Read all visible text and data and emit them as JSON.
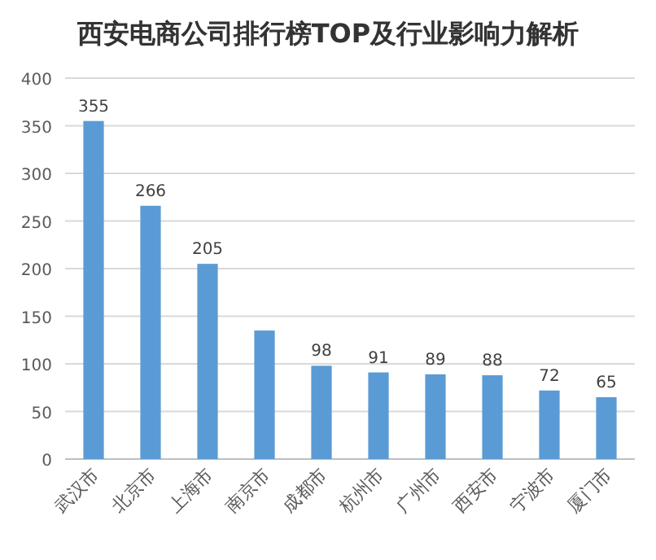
{
  "chart_data": {
    "type": "bar",
    "title": "西安电商公司排行榜TOP及行业影响力解析",
    "categories": [
      "武汉市",
      "北京市",
      "上海市",
      "南京市",
      "成都市",
      "杭州市",
      "广州市",
      "西安市",
      "宁波市",
      "厦门市"
    ],
    "values": [
      355,
      266,
      205,
      135,
      98,
      91,
      89,
      88,
      72,
      65
    ],
    "value_labels": [
      "355",
      "266",
      "205",
      null,
      "98",
      "91",
      "89",
      "88",
      "72",
      "65"
    ],
    "color": "#5b9bd5",
    "ylim": [
      0,
      400
    ],
    "yticks": [
      0,
      50,
      100,
      150,
      200,
      250,
      300,
      350,
      400
    ],
    "grid": "y"
  }
}
